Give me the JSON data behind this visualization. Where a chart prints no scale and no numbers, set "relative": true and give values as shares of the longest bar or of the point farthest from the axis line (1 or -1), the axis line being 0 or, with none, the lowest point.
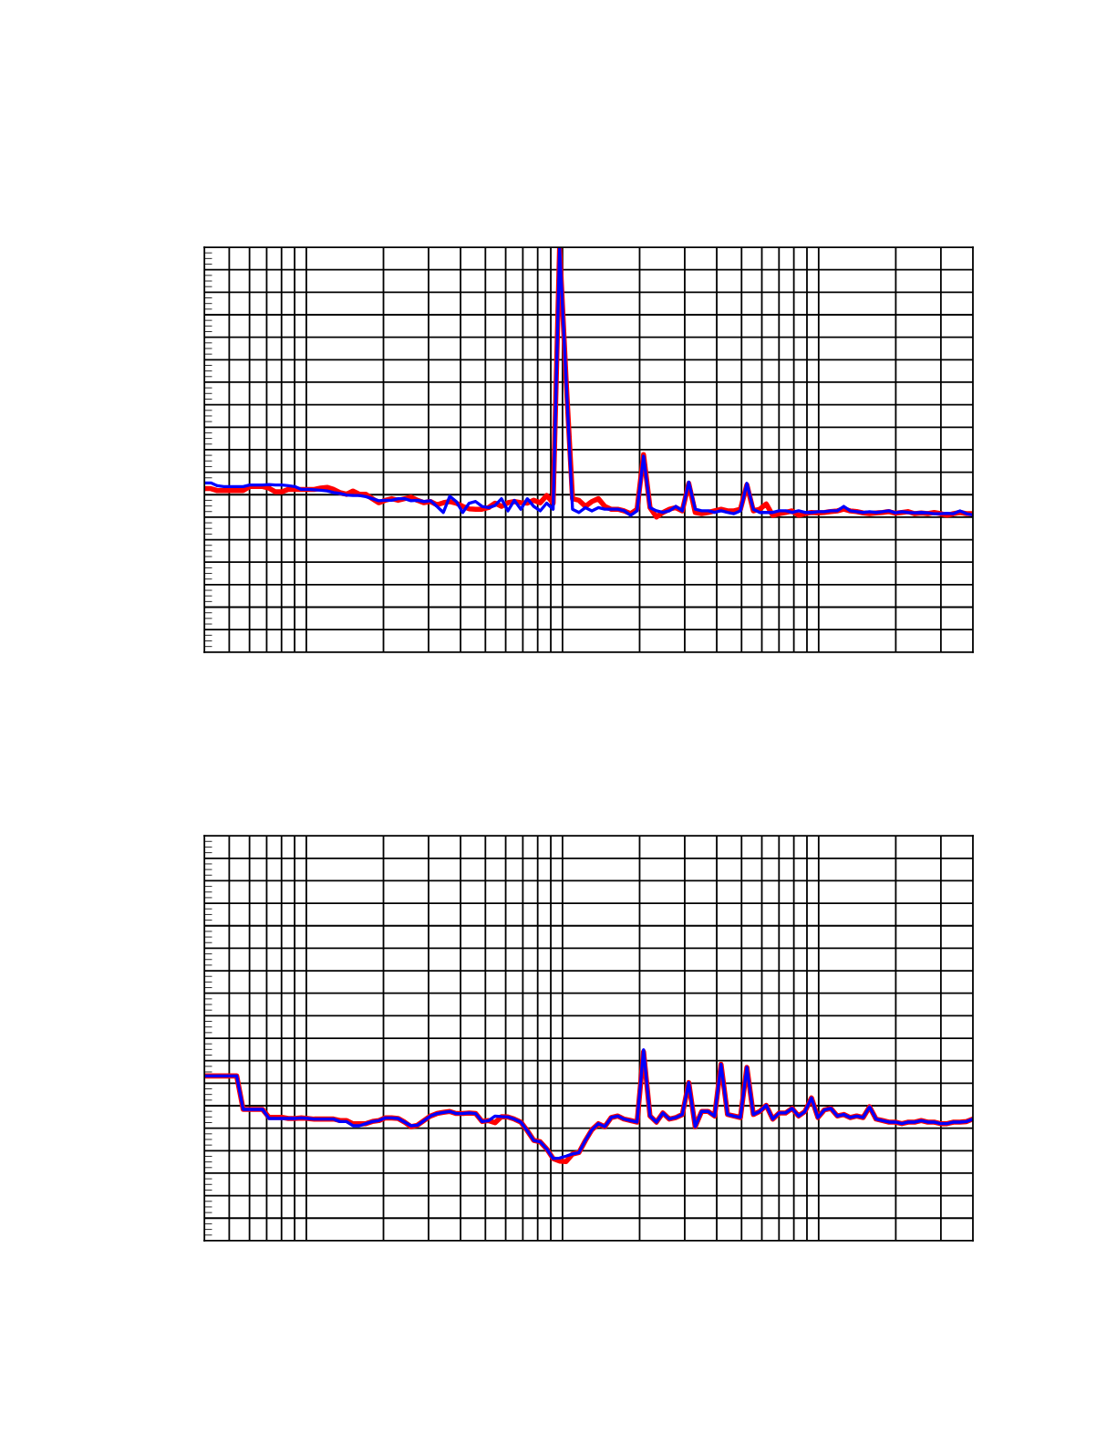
{
  "chart_data": [
    {
      "type": "line",
      "relative": true,
      "grid": true,
      "categories": [
        null,
        null,
        null,
        null,
        null,
        null,
        null,
        null,
        null,
        null,
        null,
        null,
        null,
        null,
        null,
        null,
        null,
        null,
        null,
        null,
        null,
        null,
        null,
        null,
        null,
        null,
        null,
        null,
        null,
        null,
        null,
        null,
        null,
        null,
        null,
        null,
        null,
        null,
        null,
        null,
        null,
        null,
        null,
        null,
        null,
        null,
        null,
        null,
        null,
        null,
        null,
        null,
        null,
        null,
        null,
        null,
        null,
        null,
        null,
        null,
        null,
        null,
        null,
        null,
        null,
        null,
        null,
        null,
        null,
        null,
        null,
        null,
        null,
        null,
        null,
        null,
        null,
        null,
        null,
        null,
        null,
        null,
        null,
        null,
        null,
        null,
        null,
        null,
        null,
        null,
        null,
        null,
        null,
        null,
        null,
        null,
        null,
        null,
        null,
        null,
        null,
        null,
        null,
        null,
        null,
        null,
        null,
        null,
        null,
        null,
        null,
        null,
        null,
        null,
        null,
        null,
        null,
        null,
        null,
        null
      ],
      "series": [
        {
          "color": "#ff0000",
          "values": [
            0.404,
            0.404,
            0.399,
            0.399,
            0.399,
            0.399,
            0.399,
            0.409,
            0.409,
            0.409,
            0.405,
            0.396,
            0.396,
            0.402,
            0.402,
            0.402,
            0.402,
            0.402,
            0.405,
            0.407,
            0.402,
            0.394,
            0.39,
            0.398,
            0.39,
            0.39,
            0.379,
            0.369,
            0.375,
            0.379,
            0.375,
            0.379,
            0.383,
            0.375,
            0.369,
            0.372,
            0.364,
            0.369,
            0.372,
            0.368,
            0.36,
            0.354,
            0.353,
            0.353,
            0.357,
            0.368,
            0.36,
            0.369,
            0.372,
            0.369,
            0.368,
            0.375,
            0.369,
            0.387,
            0.368,
            1.0,
            0.676,
            0.379,
            0.375,
            0.36,
            0.372,
            0.379,
            0.36,
            0.353,
            0.353,
            0.349,
            0.342,
            0.353,
            0.488,
            0.357,
            0.334,
            0.345,
            0.353,
            0.357,
            0.349,
            0.417,
            0.345,
            0.342,
            0.345,
            0.349,
            0.353,
            0.349,
            0.349,
            0.353,
            0.413,
            0.349,
            0.353,
            0.366,
            0.338,
            0.342,
            0.345,
            0.349,
            0.338,
            0.342,
            0.345,
            0.344,
            0.345,
            0.347,
            0.349,
            0.353,
            0.349,
            0.347,
            0.344,
            0.342,
            0.344,
            0.345,
            0.347,
            0.343,
            0.345,
            0.347,
            0.342,
            0.344,
            0.342,
            0.345,
            0.342,
            0.338,
            0.342,
            0.345,
            0.342,
            0.342
          ]
        },
        {
          "color": "#0000ff",
          "values": [
            0.418,
            0.418,
            0.411,
            0.409,
            0.409,
            0.409,
            0.409,
            0.413,
            0.413,
            0.413,
            0.414,
            0.413,
            0.413,
            0.411,
            0.409,
            0.402,
            0.402,
            0.401,
            0.4,
            0.398,
            0.394,
            0.392,
            0.388,
            0.387,
            0.387,
            0.384,
            0.379,
            0.374,
            0.375,
            0.375,
            0.379,
            0.379,
            0.374,
            0.375,
            0.372,
            0.374,
            0.36,
            0.345,
            0.385,
            0.372,
            0.345,
            0.368,
            0.372,
            0.36,
            0.357,
            0.362,
            0.379,
            0.349,
            0.375,
            0.353,
            0.379,
            0.36,
            0.349,
            0.368,
            0.353,
            1.0,
            0.676,
            0.353,
            0.345,
            0.357,
            0.349,
            0.357,
            0.353,
            0.353,
            0.353,
            0.349,
            0.338,
            0.349,
            0.484,
            0.357,
            0.349,
            0.345,
            0.349,
            0.36,
            0.349,
            0.42,
            0.353,
            0.349,
            0.349,
            0.345,
            0.349,
            0.345,
            0.342,
            0.349,
            0.417,
            0.353,
            0.345,
            0.345,
            0.345,
            0.349,
            0.349,
            0.345,
            0.349,
            0.345,
            0.345,
            0.347,
            0.347,
            0.349,
            0.349,
            0.36,
            0.349,
            0.347,
            0.345,
            0.347,
            0.345,
            0.347,
            0.349,
            0.344,
            0.347,
            0.345,
            0.344,
            0.345,
            0.344,
            0.342,
            0.342,
            0.343,
            0.342,
            0.349,
            0.342,
            0.339
          ]
        }
      ]
    },
    {
      "type": "line",
      "relative": true,
      "grid": true,
      "categories": [
        null,
        null,
        null,
        null,
        null,
        null,
        null,
        null,
        null,
        null,
        null,
        null,
        null,
        null,
        null,
        null,
        null,
        null,
        null,
        null,
        null,
        null,
        null,
        null,
        null,
        null,
        null,
        null,
        null,
        null,
        null,
        null,
        null,
        null,
        null,
        null,
        null,
        null,
        null,
        null,
        null,
        null,
        null,
        null,
        null,
        null,
        null,
        null,
        null,
        null,
        null,
        null,
        null,
        null,
        null,
        null,
        null,
        null,
        null,
        null,
        null,
        null,
        null,
        null,
        null,
        null,
        null,
        null,
        null,
        null,
        null,
        null,
        null,
        null,
        null,
        null,
        null,
        null,
        null,
        null,
        null,
        null,
        null,
        null,
        null,
        null,
        null,
        null,
        null,
        null,
        null,
        null,
        null,
        null,
        null,
        null,
        null,
        null,
        null,
        null,
        null,
        null,
        null,
        null,
        null,
        null,
        null,
        null,
        null,
        null,
        null,
        null,
        null,
        null,
        null,
        null,
        null,
        null,
        null,
        null
      ],
      "series": [
        {
          "color": "#ff0000",
          "values": [
            0.863,
            0.863,
            0.863,
            0.863,
            0.863,
            0.863,
            0.688,
            0.688,
            0.688,
            0.688,
            0.646,
            0.646,
            0.646,
            0.64,
            0.64,
            0.643,
            0.64,
            0.637,
            0.637,
            0.637,
            0.637,
            0.629,
            0.629,
            0.613,
            0.613,
            0.613,
            0.624,
            0.629,
            0.643,
            0.643,
            0.64,
            0.621,
            0.597,
            0.605,
            0.629,
            0.653,
            0.666,
            0.672,
            0.677,
            0.666,
            0.666,
            0.669,
            0.666,
            0.624,
            0.629,
            0.618,
            0.65,
            0.648,
            0.637,
            0.621,
            0.576,
            0.525,
            0.518,
            0.481,
            0.43,
            0.417,
            0.414,
            0.454,
            0.462,
            0.525,
            0.581,
            0.613,
            0.597,
            0.645,
            0.653,
            0.637,
            0.629,
            0.621,
            0.99,
            0.653,
            0.621,
            0.669,
            0.637,
            0.645,
            0.661,
            0.828,
            0.597,
            0.677,
            0.677,
            0.653,
            0.924,
            0.661,
            0.653,
            0.645,
            0.908,
            0.661,
            0.677,
            0.709,
            0.637,
            0.669,
            0.669,
            0.693,
            0.653,
            0.677,
            0.748,
            0.645,
            0.685,
            0.693,
            0.653,
            0.661,
            0.645,
            0.653,
            0.645,
            0.701,
            0.637,
            0.629,
            0.621,
            0.621,
            0.613,
            0.621,
            0.621,
            0.629,
            0.621,
            0.621,
            0.613,
            0.613,
            0.621,
            0.621,
            0.624,
            0.637
          ]
        },
        {
          "color": "#0000ff",
          "values": [
            0.863,
            0.863,
            0.863,
            0.863,
            0.863,
            0.863,
            0.688,
            0.688,
            0.688,
            0.688,
            0.64,
            0.64,
            0.64,
            0.64,
            0.64,
            0.643,
            0.64,
            0.637,
            0.637,
            0.637,
            0.637,
            0.624,
            0.624,
            0.602,
            0.602,
            0.613,
            0.624,
            0.629,
            0.643,
            0.643,
            0.64,
            0.621,
            0.602,
            0.605,
            0.629,
            0.653,
            0.666,
            0.672,
            0.677,
            0.666,
            0.666,
            0.669,
            0.666,
            0.624,
            0.629,
            0.653,
            0.65,
            0.648,
            0.637,
            0.621,
            0.576,
            0.525,
            0.518,
            0.481,
            0.43,
            0.433,
            0.443,
            0.454,
            0.462,
            0.525,
            0.581,
            0.613,
            0.597,
            0.645,
            0.653,
            0.637,
            0.629,
            0.621,
            1.0,
            0.653,
            0.621,
            0.669,
            0.637,
            0.645,
            0.661,
            0.828,
            0.597,
            0.677,
            0.677,
            0.653,
            0.924,
            0.661,
            0.653,
            0.645,
            0.908,
            0.661,
            0.677,
            0.709,
            0.637,
            0.669,
            0.669,
            0.693,
            0.653,
            0.677,
            0.748,
            0.645,
            0.685,
            0.693,
            0.653,
            0.661,
            0.645,
            0.653,
            0.645,
            0.701,
            0.637,
            0.629,
            0.621,
            0.621,
            0.613,
            0.621,
            0.621,
            0.629,
            0.621,
            0.621,
            0.613,
            0.613,
            0.621,
            0.621,
            0.624,
            0.637
          ]
        }
      ]
    }
  ]
}
